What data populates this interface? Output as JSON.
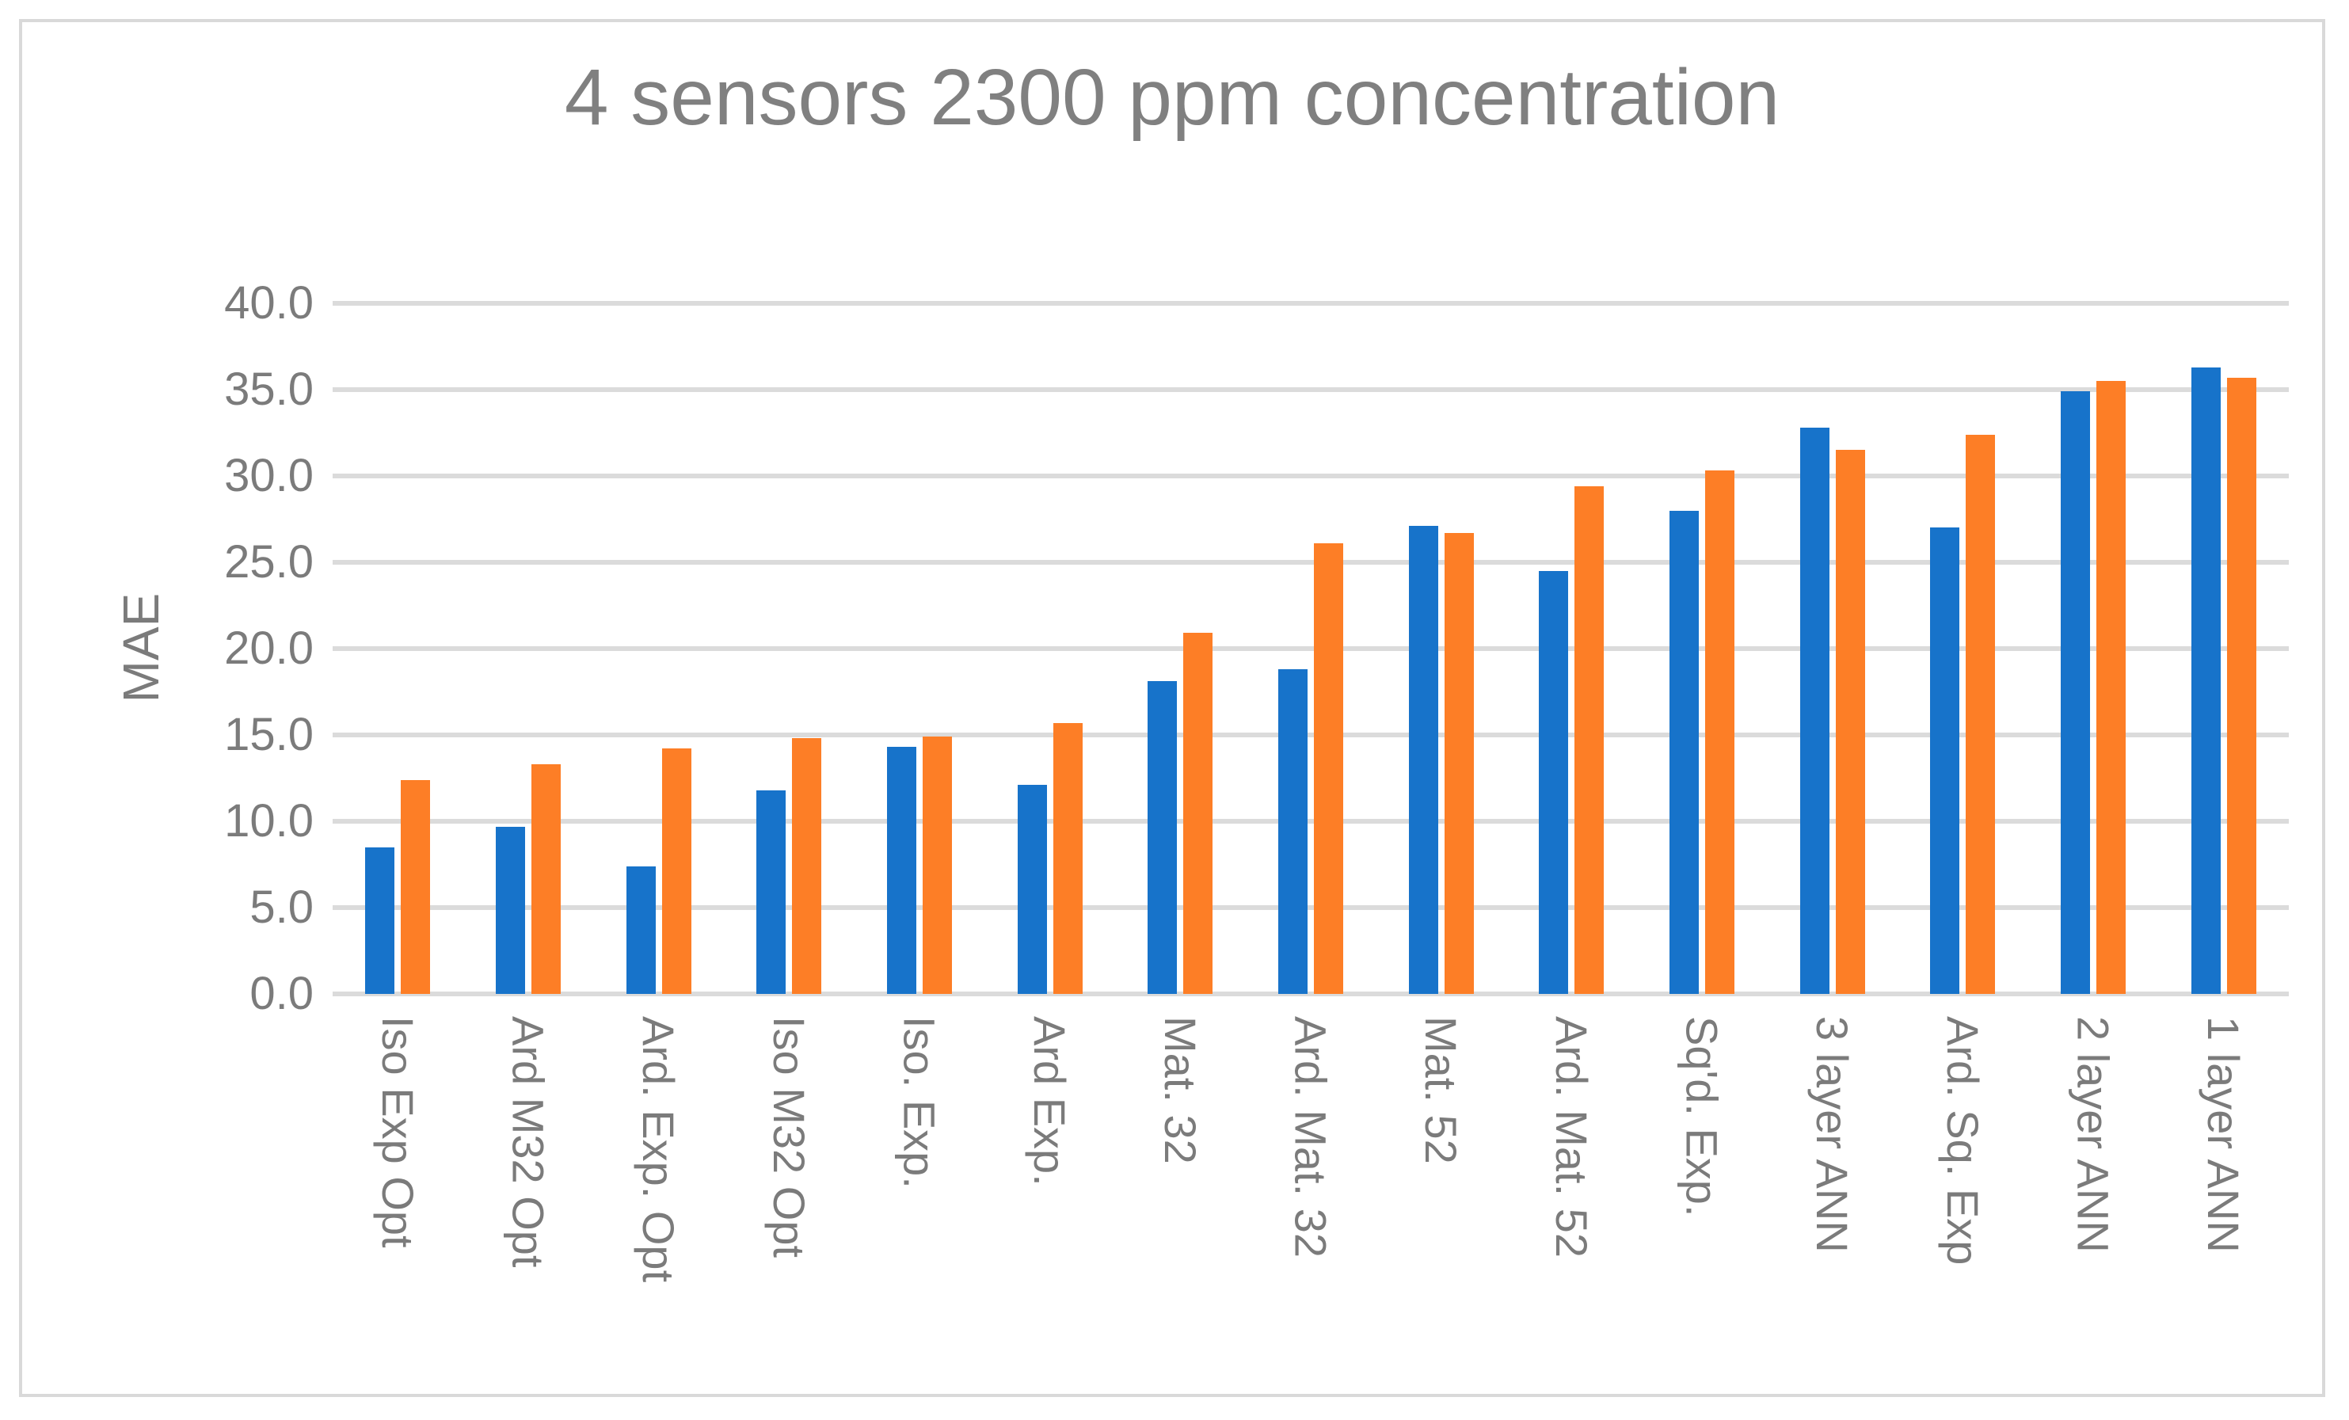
{
  "chart_data": {
    "type": "bar",
    "title": "4 sensors 2300 ppm concentration",
    "xlabel": "",
    "ylabel": "MAE",
    "ylim": [
      0,
      40
    ],
    "ytick_labels": [
      "40.0",
      "35.0",
      "30.0",
      "25.0",
      "20.0",
      "15.0",
      "10.0",
      "5.0",
      "0.0"
    ],
    "grid": "horizontal",
    "legend": "none",
    "categories": [
      "Iso Exp Opt",
      "Ard M32 Opt",
      "Ard. Exp. Opt",
      "Iso M32 Opt",
      "Iso. Exp.",
      "Ard Exp.",
      "Mat. 32",
      "Ard. Mat. 32",
      "Mat. 52",
      "Ard. Mat. 52",
      "Sq'd. Exp.",
      "3 layer ANN",
      "Ard. Sq. Exp",
      "2 layer ANN",
      "1 layer ANN"
    ],
    "series": [
      {
        "name": "series-blue",
        "color": "#1773CA",
        "values": [
          8.5,
          9.7,
          7.4,
          11.8,
          14.3,
          12.1,
          18.1,
          18.8,
          27.1,
          24.5,
          28.0,
          32.8,
          27.0,
          34.9,
          36.3
        ]
      },
      {
        "name": "series-orange",
        "color": "#FD7E26",
        "values": [
          12.4,
          13.3,
          14.2,
          14.8,
          14.9,
          15.7,
          20.9,
          26.1,
          26.7,
          29.4,
          30.3,
          31.5,
          32.4,
          35.5,
          35.7
        ]
      }
    ]
  },
  "colors": {
    "background": "#FFFFFF",
    "figure_border": "#D9D9D9",
    "gridline": "#DBDBDB",
    "title_text": "#808080",
    "axis_text": "#7B7B7B"
  }
}
